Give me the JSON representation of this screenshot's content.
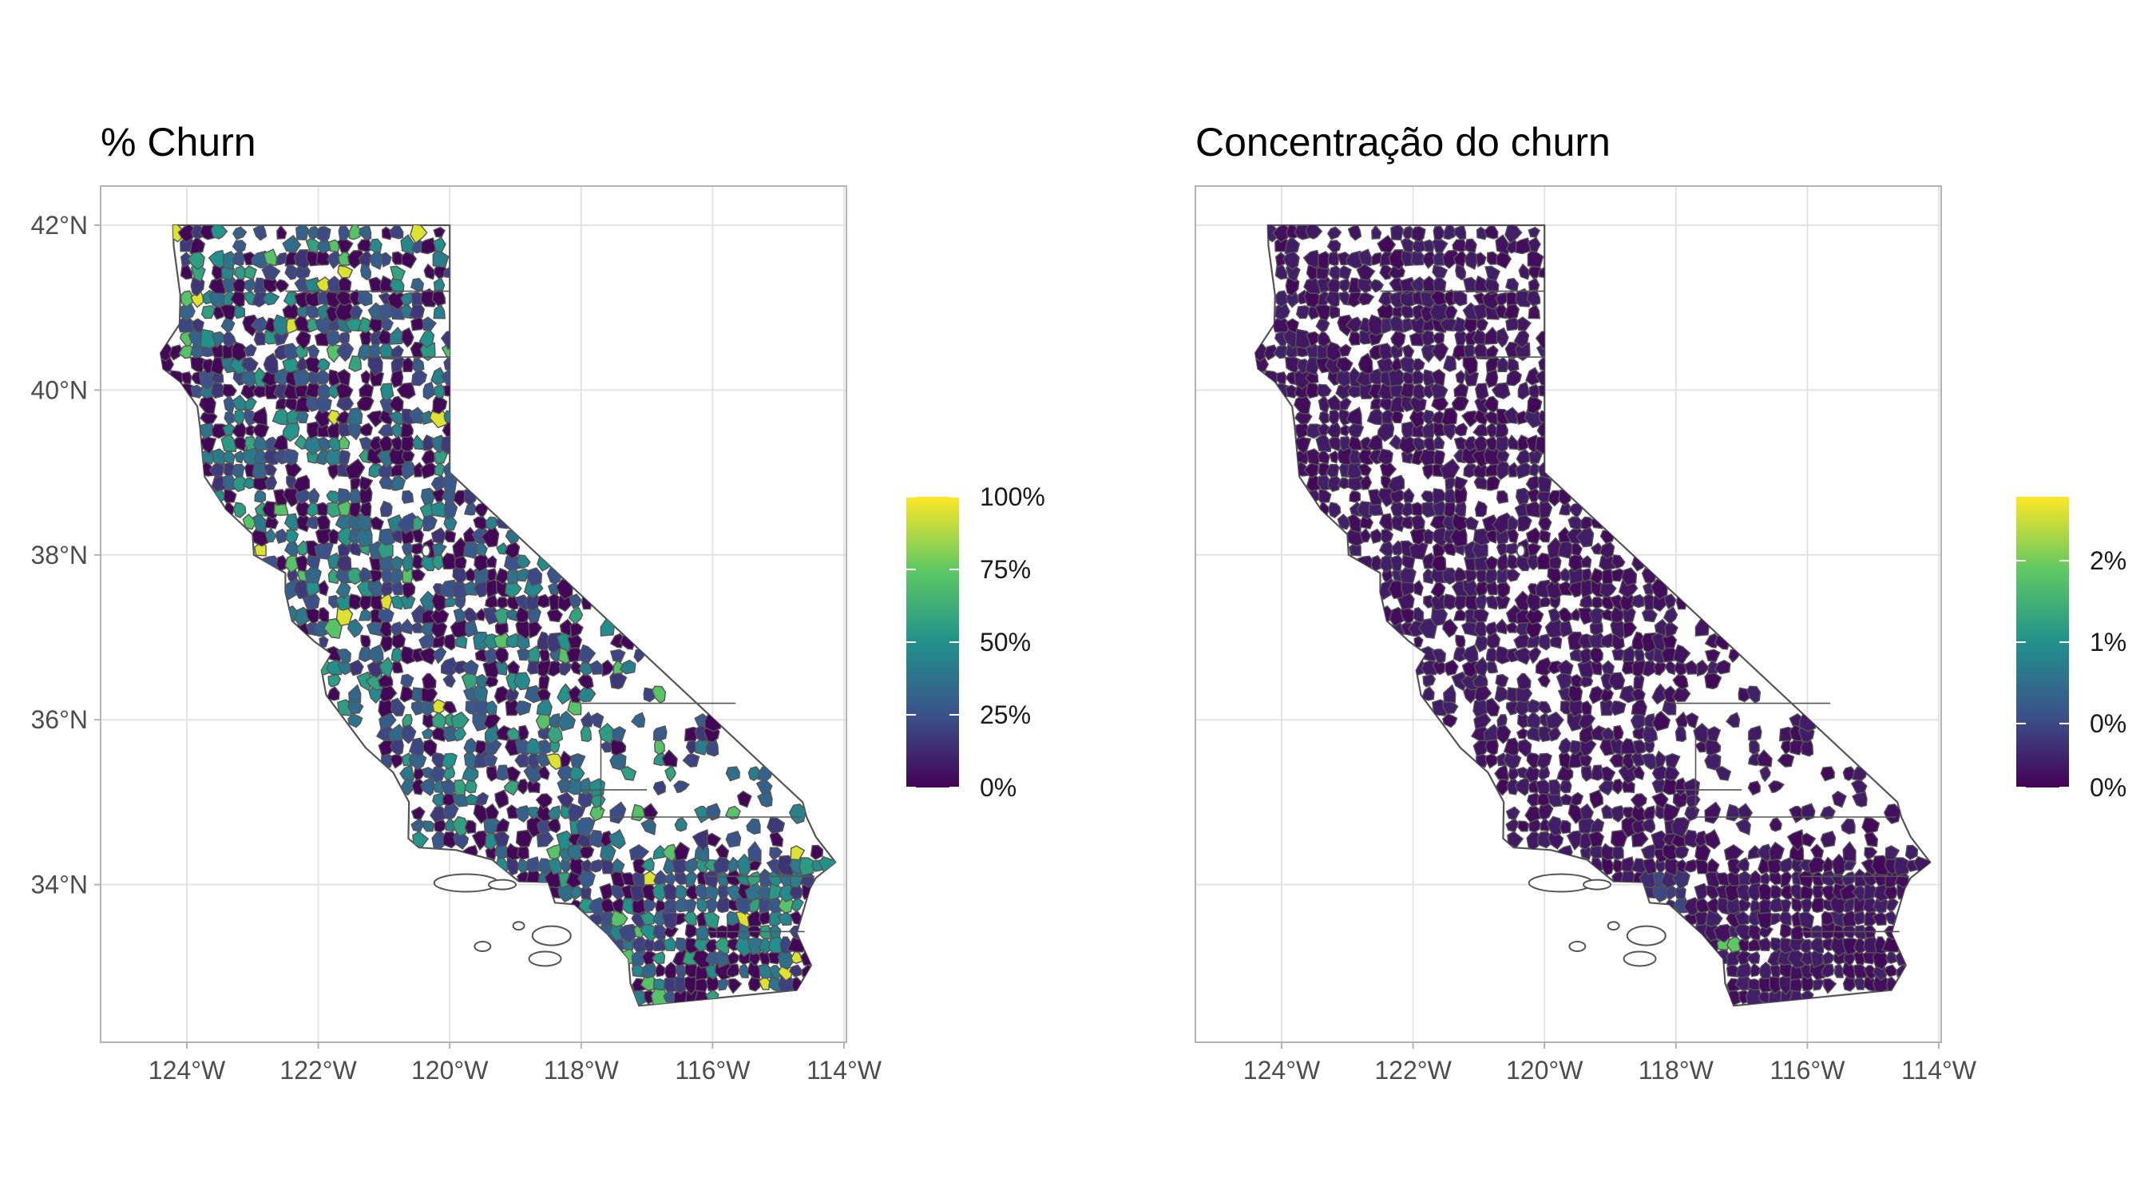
{
  "panels": [
    {
      "title": "% Churn",
      "legend": {
        "labels": [
          "100%",
          "75%",
          "50%",
          "25%",
          "0%"
        ],
        "values": [
          1.0,
          0.75,
          0.5,
          0.25,
          0.0
        ],
        "colors": [
          "#fde725",
          "#5ec962",
          "#21918c",
          "#3b528b",
          "#440154"
        ]
      },
      "fill_profile": "churn"
    },
    {
      "title": "Concentração do churn",
      "legend": {
        "labels": [
          "2%",
          "1%",
          "0%",
          "0%"
        ],
        "values": [
          0.78,
          0.5,
          0.22,
          0.0
        ],
        "colors": [
          "#fde725",
          "#5ec962",
          "#21918c",
          "#3b528b",
          "#440154"
        ]
      },
      "fill_profile": "concentration"
    }
  ],
  "axes": {
    "x_ticks": [
      "124°W",
      "122°W",
      "120°W",
      "118°W",
      "116°W",
      "114°W"
    ],
    "x_values": [
      -124,
      -122,
      -120,
      -118,
      -116,
      -114
    ],
    "y_ticks": [
      "42°N",
      "40°N",
      "38°N",
      "36°N",
      "34°N"
    ],
    "y_values": [
      42,
      40,
      38,
      36,
      34
    ],
    "lon_range": [
      -125.0,
      -113.6
    ],
    "lat_range": [
      32.2,
      42.5
    ]
  },
  "map": {
    "state": "California",
    "region_unit": "ZIP code areas"
  }
}
